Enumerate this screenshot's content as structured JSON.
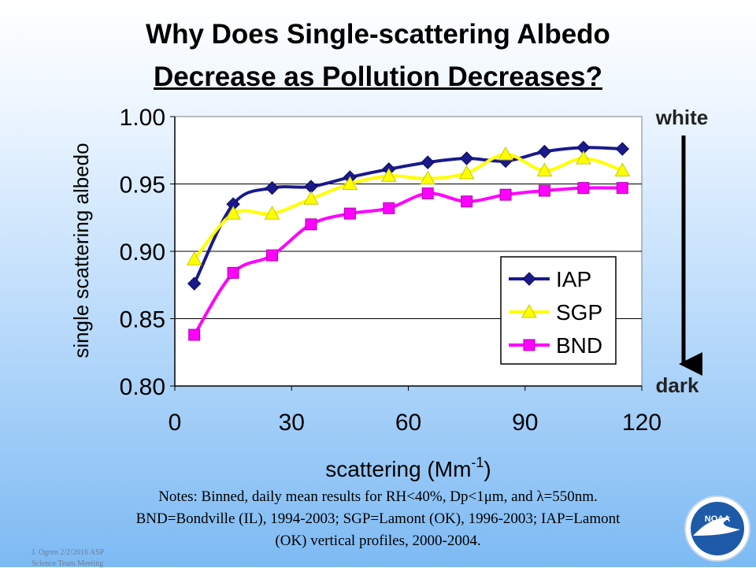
{
  "slide": {
    "title_line1": "Why Does Single-scattering Albedo",
    "title_line2": "Decrease as Pollution Decreases?",
    "notes_line1": "Notes:   Binned, daily mean results for RH<40%, Dp<1μm, and λ=550nm.",
    "notes_line2": "BND=Bondville (IL), 1994-2003; SGP=Lamont (OK), 1996-2003; IAP=Lamont",
    "notes_line3": "(OK) vertical profiles, 2000-2004.",
    "footer_line1": "J. Ogren  2/2/2016 ASP",
    "footer_line2": "Science Team Meeting",
    "logo_text": "NOAA",
    "logo_icon": "noaa-logo"
  },
  "chart_data": {
    "type": "line",
    "title": "",
    "xlabel": "scattering (Mm",
    "xlabel_sup": "-1",
    "xlabel_end": ")",
    "ylabel": "single scattering albedo",
    "xlim": [
      0,
      120
    ],
    "ylim": [
      0.8,
      1.0
    ],
    "xticks": [
      "0",
      "30",
      "60",
      "90",
      "120"
    ],
    "yticks": [
      "0.80",
      "0.85",
      "0.90",
      "0.95",
      "1.00"
    ],
    "grid": "horizontal",
    "legend_position": "bottom-right",
    "x": [
      5,
      15,
      25,
      35,
      45,
      55,
      65,
      75,
      85,
      95,
      105,
      115
    ],
    "series": [
      {
        "name": "IAP",
        "color": "#1a1a8c",
        "marker": "diamond",
        "values": [
          0.876,
          0.935,
          0.947,
          0.948,
          0.955,
          0.961,
          0.966,
          0.969,
          0.967,
          0.974,
          0.977,
          0.976
        ]
      },
      {
        "name": "SGP",
        "color": "#ffff00",
        "marker": "triangle",
        "values": [
          0.894,
          0.928,
          0.928,
          0.939,
          0.95,
          0.956,
          0.954,
          0.958,
          0.972,
          0.96,
          0.969,
          0.96
        ]
      },
      {
        "name": "BND",
        "color": "#ff00ff",
        "marker": "square",
        "values": [
          0.838,
          0.884,
          0.897,
          0.92,
          0.928,
          0.932,
          0.943,
          0.937,
          0.942,
          0.945,
          0.947,
          0.947
        ]
      }
    ],
    "annotations": {
      "top": "white",
      "bottom": "dark"
    }
  }
}
